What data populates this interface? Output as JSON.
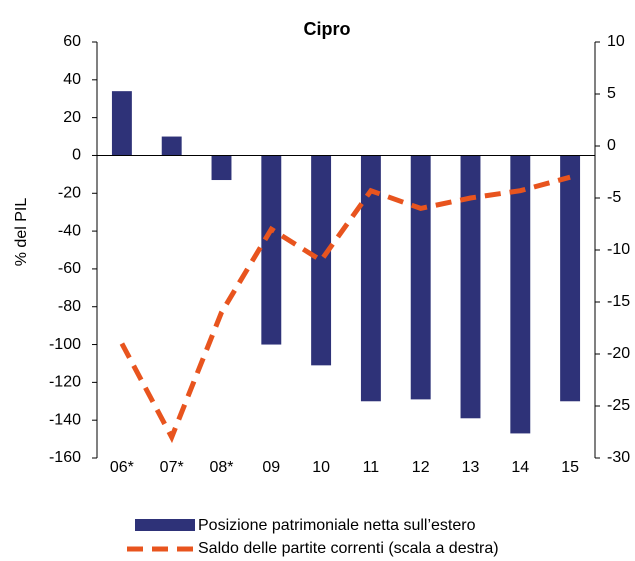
{
  "chart_data": {
    "type": "bar_line",
    "title": "Cipro",
    "y_label": "% del PIL",
    "categories": [
      "06*",
      "07*",
      "08*",
      "09",
      "10",
      "11",
      "12",
      "13",
      "14",
      "15"
    ],
    "series": [
      {
        "name": "Posizione patrimoniale netta sull’estero",
        "type": "bar",
        "color": "#2e3278",
        "values": [
          34,
          10,
          -13,
          -100,
          -111,
          -130,
          -129,
          -139,
          -147,
          -130
        ]
      },
      {
        "name": "Saldo delle partite correnti (scala a destra)",
        "type": "line",
        "axis": "y2",
        "color": "#e8541e",
        "dashed": true,
        "values": [
          -19,
          -28,
          -16,
          -8,
          -11,
          -4.3,
          -6,
          -5,
          -4.3,
          -3
        ]
      }
    ],
    "ylim": [
      -160,
      60
    ],
    "yticks": [
      60,
      40,
      20,
      0,
      -20,
      -40,
      -60,
      -80,
      -100,
      -120,
      -140,
      -160
    ],
    "y2lim": [
      -30,
      10
    ],
    "y2ticks": [
      10,
      5,
      0,
      -5,
      -10,
      -15,
      -20,
      -25,
      -30
    ],
    "grid": false
  }
}
